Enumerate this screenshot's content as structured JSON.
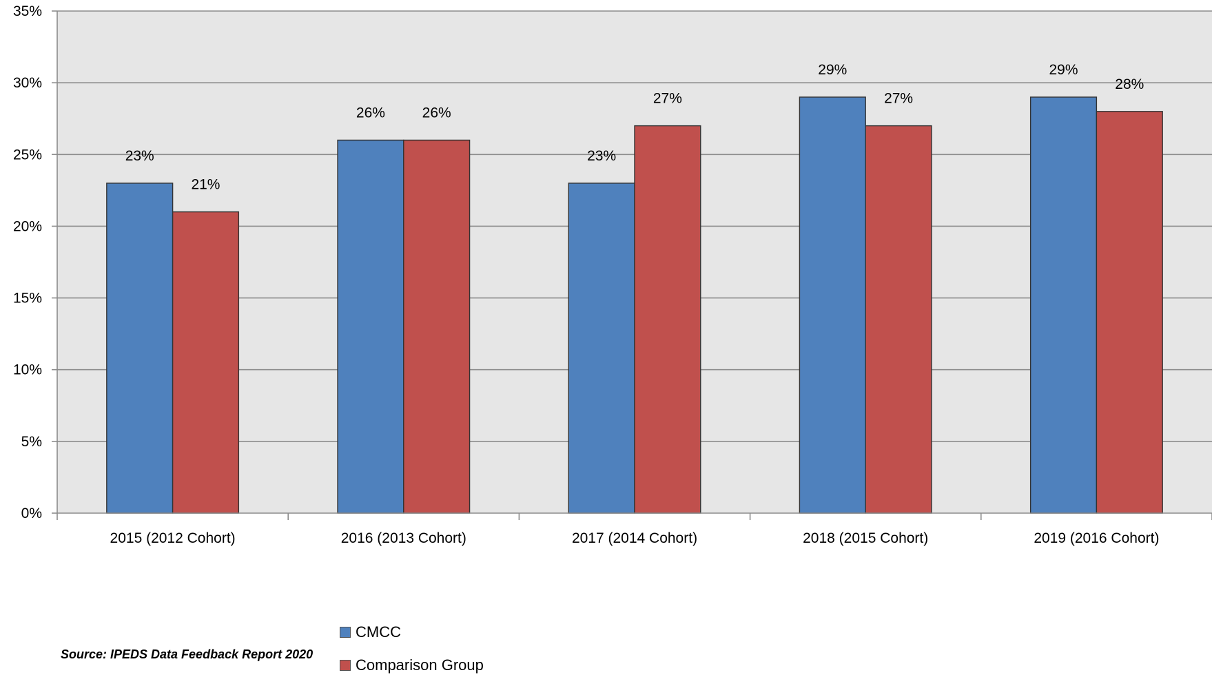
{
  "chart_data": {
    "type": "bar",
    "categories": [
      "2015 (2012 Cohort)",
      "2016 (2013 Cohort)",
      "2017 (2014 Cohort)",
      "2018 (2015 Cohort)",
      "2019 (2016 Cohort)"
    ],
    "series": [
      {
        "name": "CMCC",
        "values": [
          23,
          26,
          23,
          29,
          29
        ],
        "labels": [
          "23%",
          "26%",
          "23%",
          "29%",
          "29%"
        ],
        "color": "#4F81BD"
      },
      {
        "name": "Comparison Group",
        "values": [
          21,
          26,
          27,
          27,
          28
        ],
        "labels": [
          "21%",
          "26%",
          "27%",
          "27%",
          "28%"
        ],
        "color": "#C0504D"
      }
    ],
    "ylim": [
      0,
      35
    ],
    "yticks": [
      0,
      5,
      10,
      15,
      20,
      25,
      30,
      35
    ],
    "ytick_labels": [
      "0%",
      "5%",
      "10%",
      "15%",
      "20%",
      "25%",
      "30%",
      "35%"
    ],
    "grid": true,
    "plot_background": "#E6E6E6",
    "legend_position": "bottom"
  },
  "source_note": "Source: IPEDS Data Feedback Report 2020"
}
